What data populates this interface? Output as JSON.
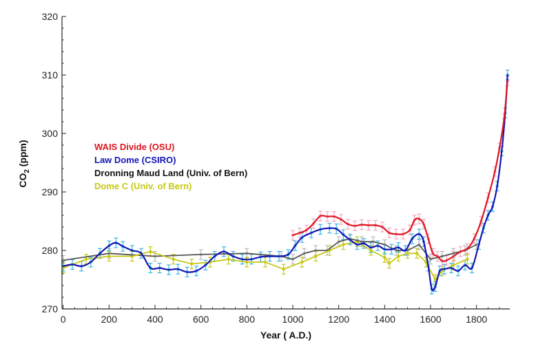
{
  "chart_data": {
    "type": "line",
    "xlabel": "Year ( A.D.)",
    "ylabel_main": "CO",
    "ylabel_sub": "2",
    "ylabel_unit": " (ppm)",
    "xlim": [
      -5,
      1945
    ],
    "ylim": [
      270,
      320
    ],
    "xticks": [
      0,
      200,
      400,
      600,
      800,
      1000,
      1200,
      1400,
      1600,
      1800
    ],
    "yticks": [
      270,
      280,
      290,
      300,
      310,
      320
    ],
    "grid": false,
    "legend": [
      {
        "name": "WAIS Divide (OSU)",
        "color": "#e0141e"
      },
      {
        "name": "Law Dome (CSIRO)",
        "color": "#1414b4"
      },
      {
        "name": "Dronning Maud Land (Univ. of Bern)",
        "color": "#111111"
      },
      {
        "name": "Dome C (Univ. of Bern)",
        "color": "#c8c814"
      }
    ],
    "legend_placement": "center-left",
    "series": [
      {
        "name": "WAIS Divide (OSU)",
        "color": "#e0141e",
        "point_color": "#f2a7c0",
        "x": [
          1000,
          1030,
          1060,
          1090,
          1120,
          1150,
          1180,
          1210,
          1240,
          1270,
          1300,
          1330,
          1360,
          1390,
          1420,
          1450,
          1480,
          1510,
          1530,
          1550,
          1570,
          1590,
          1610,
          1630,
          1650,
          1670,
          1700,
          1730,
          1760,
          1790,
          1820,
          1850,
          1880,
          1900,
          1920,
          1935
        ],
        "y": [
          282.6,
          283.0,
          283.5,
          284.6,
          285.9,
          285.8,
          285.8,
          285.3,
          284.5,
          284.2,
          284.4,
          284.3,
          284.3,
          284.0,
          283.0,
          282.8,
          282.8,
          283.5,
          285.2,
          285.4,
          284.5,
          282.0,
          279.5,
          279.0,
          278.2,
          278.3,
          279.0,
          279.8,
          280.3,
          282.0,
          285.0,
          289.0,
          293.5,
          297.5,
          302.5,
          309.0
        ]
      },
      {
        "name": "Law Dome (CSIRO)",
        "color": "#1414b4",
        "point_color": "#3cb4e6",
        "x": [
          0,
          40,
          80,
          120,
          160,
          200,
          230,
          260,
          300,
          340,
          380,
          420,
          460,
          500,
          540,
          580,
          620,
          660,
          700,
          740,
          780,
          820,
          860,
          900,
          940,
          980,
          1010,
          1040,
          1080,
          1120,
          1160,
          1190,
          1220,
          1250,
          1280,
          1310,
          1340,
          1370,
          1400,
          1430,
          1460,
          1490,
          1520,
          1550,
          1570,
          1590,
          1605,
          1620,
          1640,
          1660,
          1690,
          1720,
          1750,
          1780,
          1810,
          1830,
          1850,
          1870,
          1890,
          1910,
          1925,
          1935
        ],
        "y": [
          277.3,
          277.6,
          277.3,
          278.0,
          279.5,
          280.8,
          281.3,
          280.7,
          280.0,
          279.5,
          277.0,
          277.0,
          276.7,
          276.8,
          276.3,
          276.5,
          277.5,
          279.0,
          279.8,
          279.0,
          278.5,
          278.5,
          278.9,
          279.0,
          279.0,
          279.3,
          280.8,
          282.2,
          283.0,
          283.6,
          283.8,
          283.7,
          282.7,
          281.8,
          281.0,
          281.2,
          280.5,
          280.8,
          280.2,
          280.2,
          280.5,
          280.0,
          282.0,
          282.8,
          281.5,
          277.3,
          273.4,
          273.8,
          276.5,
          276.8,
          277.0,
          276.5,
          277.5,
          277.0,
          281.0,
          283.8,
          286.0,
          287.5,
          291.0,
          297.0,
          303.5,
          310.0
        ]
      },
      {
        "name": "Dronning Maud Land (Univ. of Bern)",
        "color": "#555555",
        "point_color": "#b8b8b8",
        "x": [
          0,
          200,
          400,
          600,
          800,
          950,
          1000,
          1050,
          1100,
          1150,
          1200,
          1250,
          1300,
          1350,
          1400,
          1450,
          1500,
          1550,
          1600,
          1650,
          1700,
          1750,
          1800
        ],
        "y": [
          278.3,
          279.5,
          279.0,
          279.3,
          279.5,
          279.0,
          278.5,
          279.5,
          280.0,
          280.0,
          281.5,
          282.0,
          281.5,
          281.5,
          281.0,
          280.0,
          280.0,
          281.0,
          278.5,
          279.0,
          279.5,
          280.0,
          281.0
        ]
      },
      {
        "name": "Dome C (Univ. of Bern)",
        "color": "#c8c814",
        "point_color": "#c8c814",
        "x": [
          0,
          100,
          200,
          300,
          380,
          480,
          560,
          640,
          720,
          800,
          880,
          960,
          1040,
          1100,
          1160,
          1220,
          1280,
          1340,
          1400,
          1420,
          1460,
          1500,
          1540,
          1580,
          1620,
          1650,
          1700,
          1760
        ],
        "y": [
          277.0,
          278.5,
          279.0,
          279.0,
          279.8,
          278.5,
          277.7,
          278.0,
          278.5,
          278.0,
          278.0,
          276.8,
          278.0,
          279.0,
          280.0,
          281.0,
          281.5,
          280.0,
          278.8,
          277.8,
          279.0,
          279.5,
          279.5,
          278.0,
          275.0,
          276.5,
          277.5,
          278.5
        ]
      }
    ]
  }
}
